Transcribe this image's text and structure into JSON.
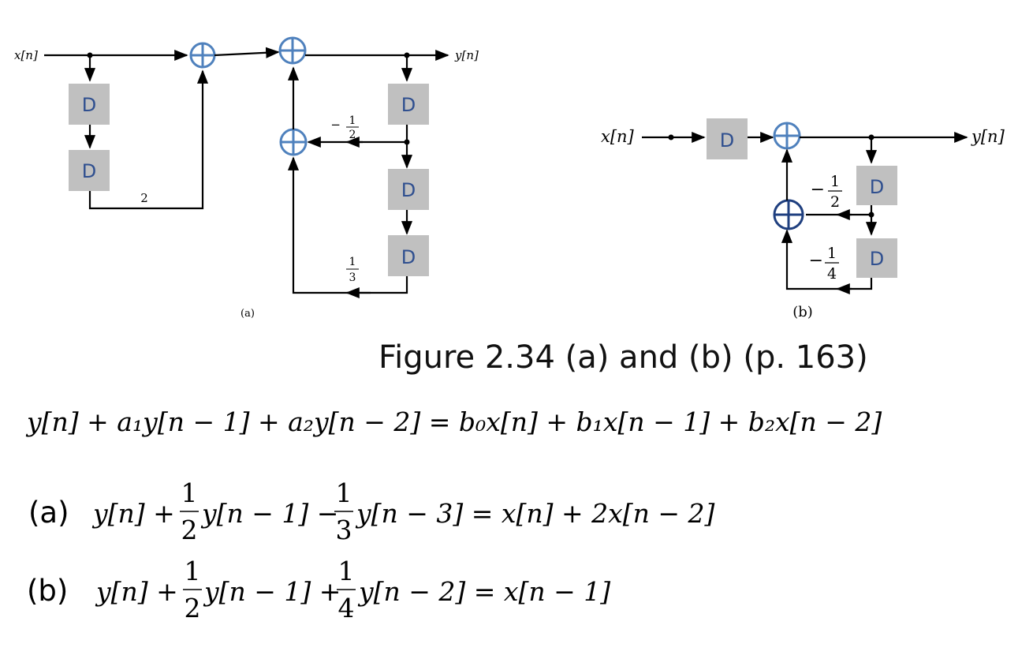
{
  "diagram_a": {
    "input_label": "x[n]",
    "output_label": "y[n]",
    "delay_label": "D",
    "gain_feedforward": "2",
    "gain_fb1_num": "1",
    "gain_fb1_den": "2",
    "gain_fb1_sign": "−",
    "gain_fb3_num": "1",
    "gain_fb3_den": "3",
    "caption": "(a)"
  },
  "diagram_b": {
    "input_label": "x[n]",
    "output_label": "y[n]",
    "delay_label": "D",
    "gain_1_sign": "−",
    "gain_1_num": "1",
    "gain_1_den": "2",
    "gain_2_sign": "−",
    "gain_2_num": "1",
    "gain_2_den": "4",
    "caption": "(b)"
  },
  "figure_title": "Figure 2.34 (a) and (b) (p. 163)",
  "equations": {
    "general": "y[n] + a₁y[n − 1] + a₂y[n − 2] = b₀x[n] + b₁x[n − 1] + b₂x[n − 2]",
    "a_label": "(a)",
    "a_lhs_1": "y[n] +",
    "a_frac1_num": "1",
    "a_frac1_den": "2",
    "a_lhs_2": "y[n − 1] −",
    "a_frac2_num": "1",
    "a_frac2_den": "3",
    "a_lhs_3": "y[n − 3] = x[n] + 2x[n − 2]",
    "b_label": "(b)",
    "b_lhs_1": "y[n] +",
    "b_frac1_num": "1",
    "b_frac1_den": "2",
    "b_lhs_2": "y[n − 1] +",
    "b_frac2_num": "1",
    "b_frac2_den": "4",
    "b_lhs_3": "y[n − 2] = x[n − 1]"
  },
  "colors": {
    "adder": "#4f81bd",
    "adder_dark": "#1f3f7f",
    "delay_box": "#c0c0c0",
    "delay_text": "#2f4f8f"
  }
}
